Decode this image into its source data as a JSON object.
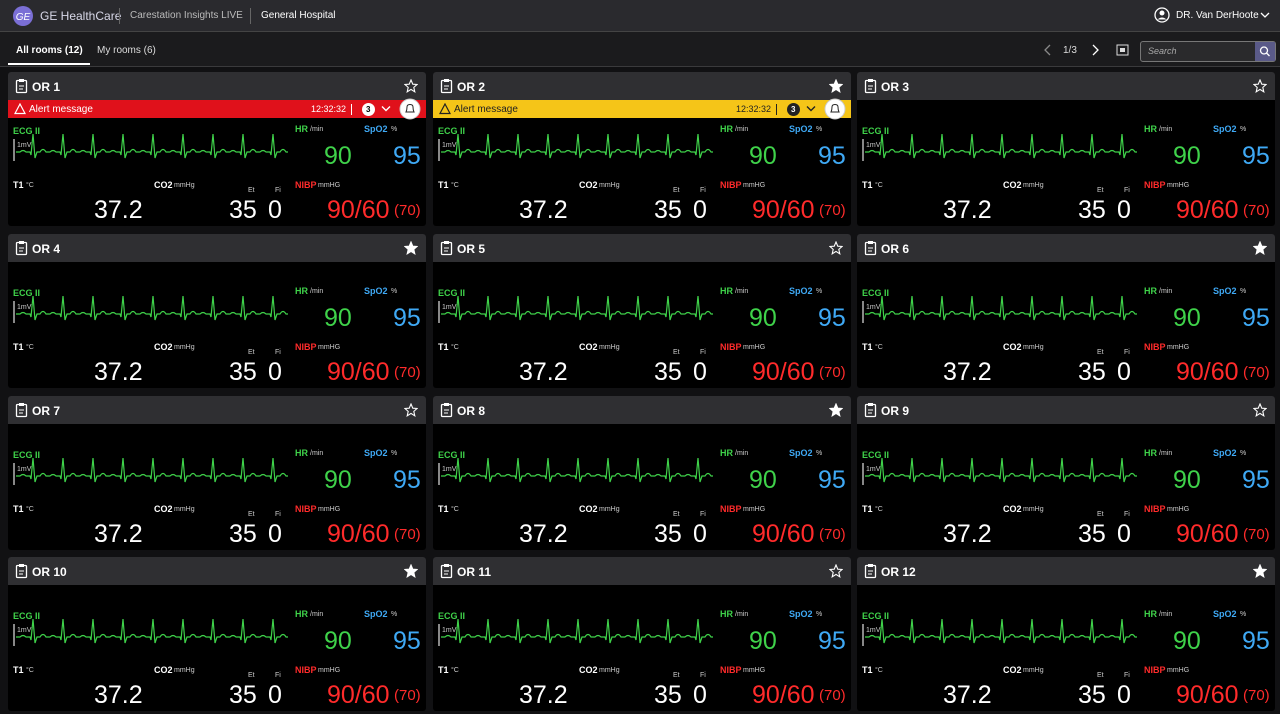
{
  "header": {
    "brand": "GE HealthCare",
    "app": "Carestation Insights LIVE",
    "site": "General Hospital",
    "user": "DR. Van DerHoote"
  },
  "tabs": [
    "All rooms (12)",
    "My rooms (6)"
  ],
  "pager": "1/3",
  "search_placeholder": "Search",
  "labels": {
    "ecg": "ECG II",
    "mv": "1mV",
    "hr": "HR",
    "hr_unit": "/min",
    "spo2": "SpO2",
    "spo2_unit": "%",
    "t1": "T1",
    "t1_unit": "°C",
    "co2": "CO2",
    "co2_unit": "mmHg",
    "et": "Et",
    "fi": "Fi",
    "nibp": "NIBP",
    "nibp_unit": "mmHG"
  },
  "rooms": [
    {
      "name": "OR 1",
      "starred": false,
      "alert": {
        "message": "Alert message",
        "time": "12:32:32",
        "count": 3,
        "level": "red"
      },
      "hr": 90,
      "spo2": 95,
      "t1": 37.2,
      "co2_et": 35,
      "co2_fi": 0,
      "nibp": "90/60",
      "nibp_mean": "(70)"
    },
    {
      "name": "OR 2",
      "starred": true,
      "alert": {
        "message": "Alert message",
        "time": "12:32:32",
        "count": 3,
        "level": "yellow"
      },
      "hr": 90,
      "spo2": 95,
      "t1": 37.2,
      "co2_et": 35,
      "co2_fi": 0,
      "nibp": "90/60",
      "nibp_mean": "(70)"
    },
    {
      "name": "OR 3",
      "starred": false,
      "hr": 90,
      "spo2": 95,
      "t1": 37.2,
      "co2_et": 35,
      "co2_fi": 0,
      "nibp": "90/60",
      "nibp_mean": "(70)"
    },
    {
      "name": "OR 4",
      "starred": true,
      "hr": 90,
      "spo2": 95,
      "t1": 37.2,
      "co2_et": 35,
      "co2_fi": 0,
      "nibp": "90/60",
      "nibp_mean": "(70)"
    },
    {
      "name": "OR 5",
      "starred": false,
      "hr": 90,
      "spo2": 95,
      "t1": 37.2,
      "co2_et": 35,
      "co2_fi": 0,
      "nibp": "90/60",
      "nibp_mean": "(70)"
    },
    {
      "name": "OR 6",
      "starred": true,
      "hr": 90,
      "spo2": 95,
      "t1": 37.2,
      "co2_et": 35,
      "co2_fi": 0,
      "nibp": "90/60",
      "nibp_mean": "(70)"
    },
    {
      "name": "OR 7",
      "starred": false,
      "hr": 90,
      "spo2": 95,
      "t1": 37.2,
      "co2_et": 35,
      "co2_fi": 0,
      "nibp": "90/60",
      "nibp_mean": "(70)"
    },
    {
      "name": "OR 8",
      "starred": true,
      "hr": 90,
      "spo2": 95,
      "t1": 37.2,
      "co2_et": 35,
      "co2_fi": 0,
      "nibp": "90/60",
      "nibp_mean": "(70)"
    },
    {
      "name": "OR 9",
      "starred": false,
      "hr": 90,
      "spo2": 95,
      "t1": 37.2,
      "co2_et": 35,
      "co2_fi": 0,
      "nibp": "90/60",
      "nibp_mean": "(70)"
    },
    {
      "name": "OR 10",
      "starred": true,
      "hr": 90,
      "spo2": 95,
      "t1": 37.2,
      "co2_et": 35,
      "co2_fi": 0,
      "nibp": "90/60",
      "nibp_mean": "(70)"
    },
    {
      "name": "OR 11",
      "starred": false,
      "hr": 90,
      "spo2": 95,
      "t1": 37.2,
      "co2_et": 35,
      "co2_fi": 0,
      "nibp": "90/60",
      "nibp_mean": "(70)"
    },
    {
      "name": "OR 12",
      "starred": true,
      "hr": 90,
      "spo2": 95,
      "t1": 37.2,
      "co2_et": 35,
      "co2_fi": 0,
      "nibp": "90/60",
      "nibp_mean": "(70)"
    }
  ]
}
